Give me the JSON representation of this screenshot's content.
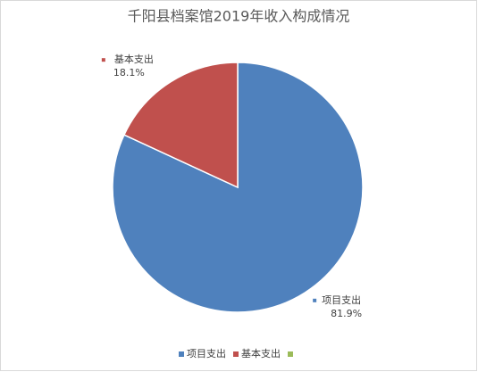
{
  "chart_data": {
    "type": "pie",
    "title": "千阳县档案馆2019年收入构成情况",
    "categories": [
      "项目支出",
      "基本支出",
      null
    ],
    "values": [
      81.9,
      18.1,
      null
    ],
    "value_labels": [
      "81.9%",
      "18.1%",
      null
    ],
    "colors": [
      "#4f81bd",
      "#c0504d",
      "#9bbb59"
    ],
    "legend": "bottom"
  }
}
